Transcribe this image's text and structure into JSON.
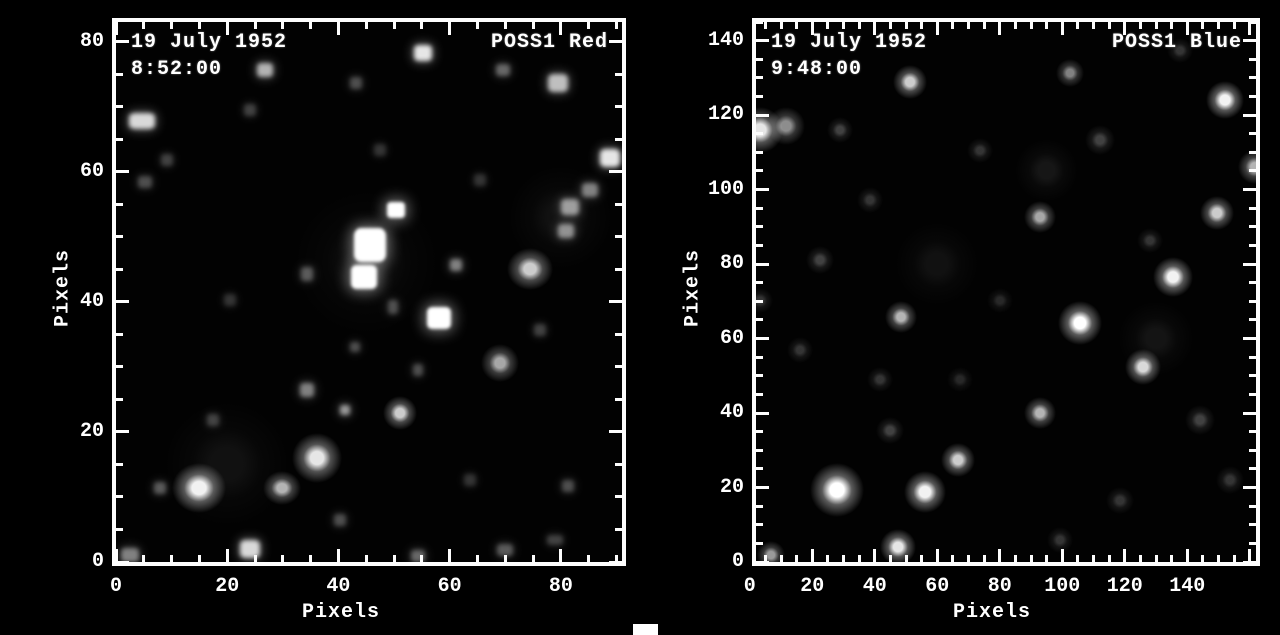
{
  "figure": {
    "background": "#000000",
    "axis_color": "#fdfdfd",
    "text_color": "#ffffff"
  },
  "chart_data": [
    {
      "type": "heatmap",
      "title": "POSS1 Red",
      "annotations": [
        "19 July 1952",
        "8:52:00"
      ],
      "xlabel": "Pixels",
      "ylabel": "Pixels",
      "xlim": [
        0,
        91
      ],
      "ylim": [
        0,
        83
      ],
      "x_ticks": [
        0,
        20,
        40,
        60,
        80
      ],
      "y_ticks": [
        0,
        20,
        40,
        60,
        80
      ],
      "major_tick_step": 20,
      "minor_tick_step": 5,
      "star_fields": [
        "x",
        "y",
        "w_px",
        "h_px",
        "brightness",
        "shape"
      ],
      "stars": [
        [
          4.7,
          67.8,
          26,
          16,
          0.85,
          "block"
        ],
        [
          26.8,
          75.6,
          16,
          14,
          0.7,
          "block"
        ],
        [
          55.2,
          78.2,
          18,
          16,
          0.9,
          "block"
        ],
        [
          43.2,
          73.6,
          12,
          12,
          0.3,
          "block"
        ],
        [
          69.6,
          75.6,
          14,
          12,
          0.4,
          "block"
        ],
        [
          79.5,
          73.6,
          20,
          18,
          0.75,
          "block"
        ],
        [
          88.8,
          62.1,
          20,
          18,
          0.9,
          "block"
        ],
        [
          85.3,
          57.2,
          16,
          14,
          0.5,
          "block"
        ],
        [
          81.7,
          54.6,
          18,
          16,
          0.6,
          "block"
        ],
        [
          80.9,
          50.9,
          16,
          14,
          0.55,
          "block"
        ],
        [
          74.5,
          45.0,
          22,
          20,
          0.8,
          "round"
        ],
        [
          50.4,
          54.1,
          18,
          16,
          0.95,
          "sat"
        ],
        [
          45.7,
          48.7,
          32,
          34,
          1.0,
          "sat"
        ],
        [
          44.6,
          43.8,
          26,
          24,
          1.0,
          "sat"
        ],
        [
          58.1,
          37.5,
          24,
          22,
          1.0,
          "sat"
        ],
        [
          61.2,
          45.7,
          12,
          12,
          0.5,
          "block"
        ],
        [
          34.4,
          44.3,
          12,
          14,
          0.35,
          "block"
        ],
        [
          34.4,
          26.4,
          14,
          14,
          0.5,
          "block"
        ],
        [
          69.1,
          30.6,
          18,
          18,
          0.65,
          "round"
        ],
        [
          51.1,
          22.9,
          16,
          16,
          0.8,
          "round"
        ],
        [
          41.2,
          23.4,
          10,
          10,
          0.6,
          "block"
        ],
        [
          14.9,
          11.4,
          26,
          24,
          0.95,
          "round"
        ],
        [
          7.9,
          11.4,
          12,
          12,
          0.35,
          "block"
        ],
        [
          29.9,
          11.4,
          18,
          16,
          0.7,
          "round"
        ],
        [
          36.2,
          16.0,
          24,
          24,
          0.9,
          "round"
        ],
        [
          24.1,
          2.0,
          20,
          18,
          0.85,
          "block"
        ],
        [
          2.5,
          1.1,
          18,
          14,
          0.5,
          "block"
        ],
        [
          54.3,
          0.9,
          14,
          12,
          0.4,
          "block"
        ],
        [
          70.0,
          1.8,
          16,
          12,
          0.35,
          "block"
        ],
        [
          43.0,
          33.0,
          10,
          10,
          0.3,
          "block"
        ],
        [
          54.3,
          29.5,
          10,
          12,
          0.3,
          "block"
        ],
        [
          81.3,
          11.7,
          12,
          12,
          0.3,
          "block"
        ],
        [
          78.9,
          3.4,
          16,
          10,
          0.25,
          "block"
        ],
        [
          49.8,
          39.2,
          10,
          14,
          0.3,
          "block"
        ],
        [
          24.1,
          69.5,
          12,
          12,
          0.25,
          "block"
        ],
        [
          9.2,
          61.8,
          12,
          12,
          0.25,
          "block"
        ],
        [
          5.2,
          58.4,
          14,
          12,
          0.3,
          "block"
        ],
        [
          17.4,
          21.8,
          12,
          12,
          0.25,
          "block"
        ],
        [
          40.3,
          6.5,
          12,
          12,
          0.3,
          "block"
        ],
        [
          65.5,
          58.7,
          12,
          12,
          0.2,
          "block"
        ],
        [
          20.5,
          40.3,
          12,
          12,
          0.2,
          "block"
        ],
        [
          76.3,
          35.7,
          12,
          12,
          0.25,
          "block"
        ],
        [
          63.7,
          12.6,
          12,
          12,
          0.2,
          "block"
        ],
        [
          47.5,
          63.3,
          12,
          12,
          0.2,
          "block"
        ],
        [
          20.0,
          15.0,
          60,
          60,
          0.06,
          "round"
        ],
        [
          80.0,
          53.0,
          50,
          50,
          0.06,
          "round"
        ],
        [
          45.0,
          46.0,
          70,
          70,
          0.05,
          "round"
        ]
      ]
    },
    {
      "type": "heatmap",
      "title": "POSS1 Blue",
      "annotations": [
        "19 July 1952",
        "9:48:00"
      ],
      "xlabel": "Pixels",
      "ylabel": "Pixels",
      "xlim": [
        2,
        162
      ],
      "ylim": [
        0,
        145
      ],
      "x_ticks": [
        0,
        20,
        40,
        60,
        80,
        100,
        120,
        140
      ],
      "y_ticks": [
        0,
        20,
        40,
        60,
        80,
        100,
        120,
        140
      ],
      "major_tick_step": 20,
      "minor_tick_step": 5,
      "star_fields": [
        "x",
        "y",
        "w_px",
        "h_px",
        "brightness",
        "shape"
      ],
      "stars": [
        [
          3.3,
          116.0,
          22,
          22,
          0.9,
          "round"
        ],
        [
          11.6,
          117.0,
          18,
          18,
          0.55,
          "round"
        ],
        [
          51.3,
          128.9,
          16,
          16,
          0.8,
          "round"
        ],
        [
          102.5,
          131.3,
          13,
          13,
          0.5,
          "round"
        ],
        [
          152.1,
          124.0,
          18,
          18,
          0.95,
          "round"
        ],
        [
          161.7,
          106.0,
          16,
          16,
          0.7,
          "round"
        ],
        [
          92.9,
          92.6,
          15,
          15,
          0.65,
          "round"
        ],
        [
          149.5,
          93.7,
          16,
          16,
          0.8,
          "round"
        ],
        [
          48.4,
          65.8,
          15,
          15,
          0.7,
          "round"
        ],
        [
          105.7,
          64.2,
          21,
          21,
          1.0,
          "round"
        ],
        [
          135.4,
          76.5,
          19,
          19,
          0.95,
          "round"
        ],
        [
          125.8,
          52.3,
          17,
          17,
          0.85,
          "round"
        ],
        [
          92.9,
          40.0,
          15,
          15,
          0.7,
          "round"
        ],
        [
          66.6,
          27.4,
          16,
          16,
          0.8,
          "round"
        ],
        [
          56.1,
          18.8,
          20,
          20,
          0.95,
          "round"
        ],
        [
          27.9,
          19.3,
          26,
          26,
          1.0,
          "round"
        ],
        [
          47.4,
          4.0,
          17,
          17,
          0.9,
          "round"
        ],
        [
          6.8,
          1.9,
          13,
          13,
          0.6,
          "round"
        ],
        [
          73.7,
          110.6,
          12,
          12,
          0.2,
          "round"
        ],
        [
          112.1,
          113.3,
          14,
          14,
          0.25,
          "round"
        ],
        [
          38.5,
          97.2,
          12,
          12,
          0.2,
          "round"
        ],
        [
          22.5,
          81.1,
          13,
          13,
          0.25,
          "round"
        ],
        [
          41.7,
          48.9,
          12,
          12,
          0.2,
          "round"
        ],
        [
          80.1,
          70.3,
          12,
          12,
          0.15,
          "round"
        ],
        [
          144.1,
          38.1,
          14,
          14,
          0.25,
          "round"
        ],
        [
          153.7,
          22.0,
          13,
          13,
          0.2,
          "round"
        ],
        [
          118.5,
          16.6,
          13,
          13,
          0.2,
          "round"
        ],
        [
          16.1,
          56.9,
          12,
          12,
          0.2,
          "round"
        ],
        [
          137.7,
          137.4,
          12,
          12,
          0.2,
          "round"
        ],
        [
          99.3,
          5.9,
          12,
          12,
          0.2,
          "round"
        ],
        [
          44.9,
          35.4,
          13,
          13,
          0.25,
          "round"
        ],
        [
          3.3,
          70.3,
          12,
          12,
          0.2,
          "round"
        ],
        [
          128.1,
          86.4,
          12,
          12,
          0.2,
          "round"
        ],
        [
          28.9,
          116.0,
          12,
          12,
          0.25,
          "round"
        ],
        [
          67.3,
          48.9,
          12,
          12,
          0.15,
          "round"
        ],
        [
          95.0,
          105.0,
          30,
          30,
          0.08,
          "round"
        ],
        [
          60.0,
          80.0,
          40,
          40,
          0.06,
          "round"
        ],
        [
          130.0,
          60.0,
          36,
          36,
          0.07,
          "round"
        ]
      ]
    }
  ]
}
